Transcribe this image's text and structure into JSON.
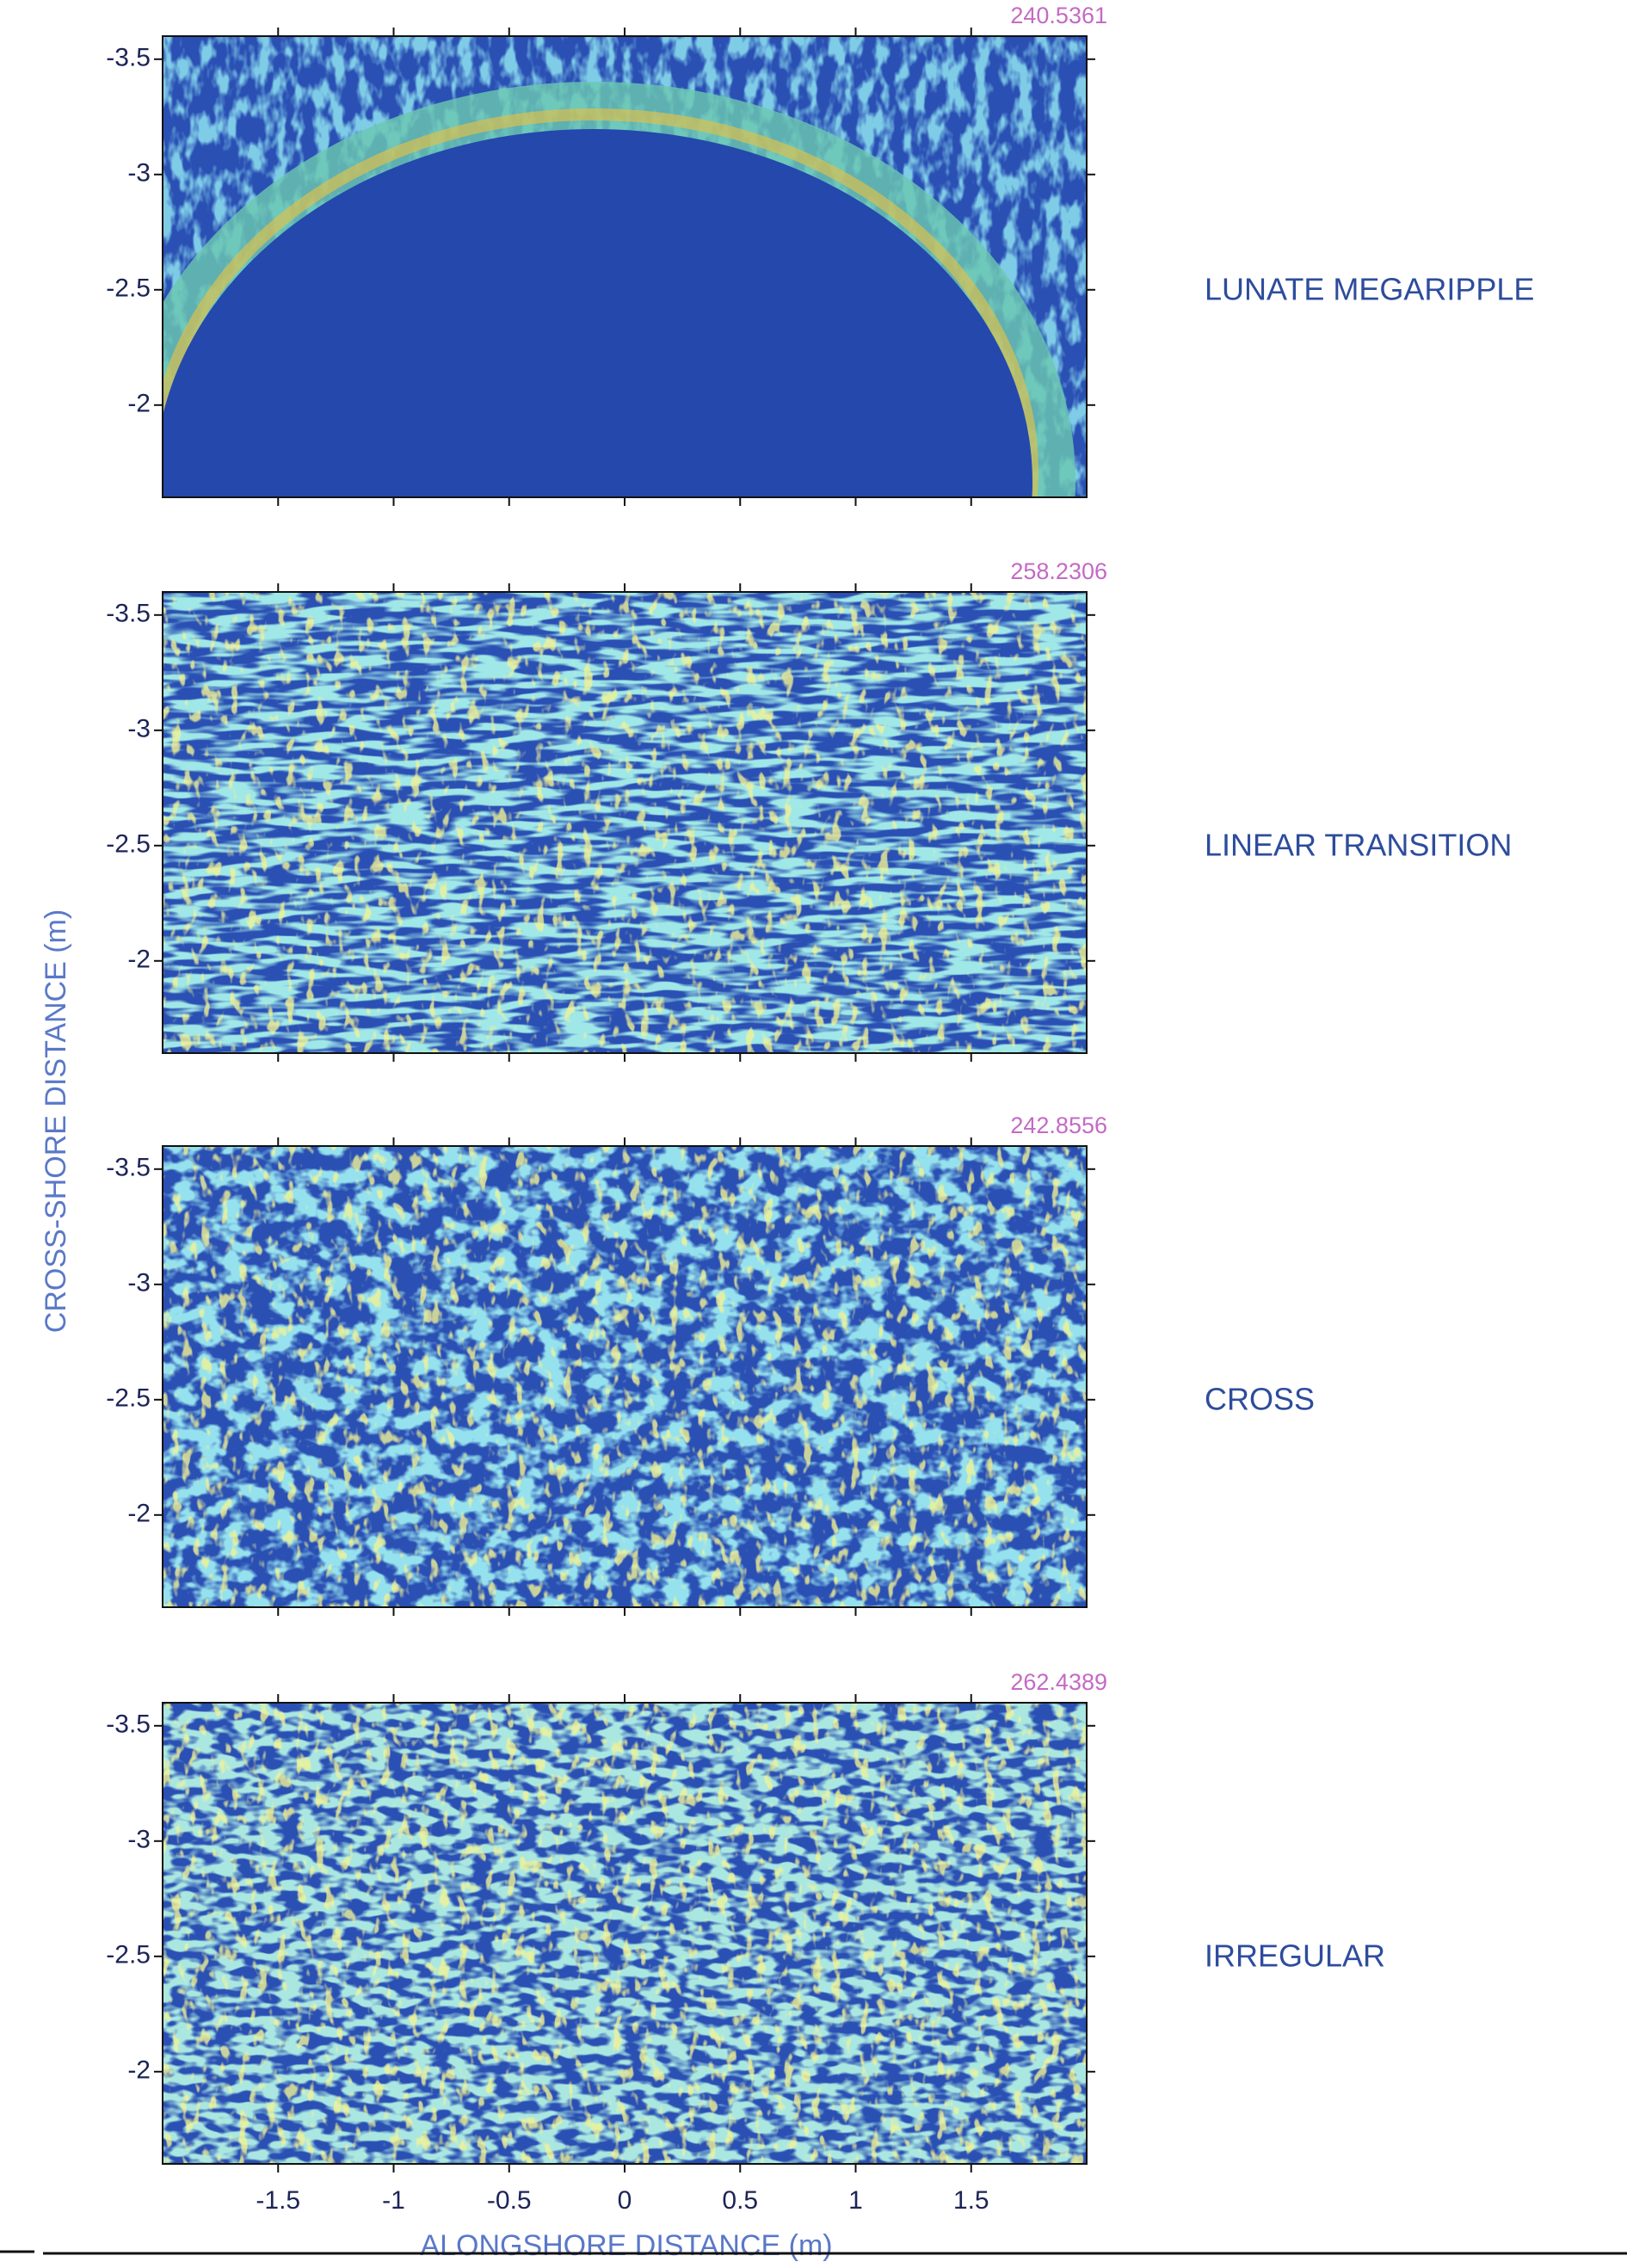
{
  "xlabel": "ALONGSHORE DISTANCE (m)",
  "ylabel": "CROSS-SHORE DISTANCE (m)",
  "chart_data": [
    {
      "type": "heatmap",
      "title": "240.5361",
      "label": "LUNATE MEGARIPPLE",
      "xlim": [
        -2,
        2
      ],
      "xticks": [
        -1.5,
        -1,
        -0.5,
        0,
        0.5,
        1,
        1.5
      ],
      "ylim": [
        -3.6,
        -1.6
      ],
      "y_reversed": true,
      "yticks": [
        -3.5,
        -3,
        -2.5,
        -2
      ]
    },
    {
      "type": "heatmap",
      "title": "258.2306",
      "label": "LINEAR TRANSITION",
      "xlim": [
        -2,
        2
      ],
      "xticks": [
        -1.5,
        -1,
        -0.5,
        0,
        0.5,
        1,
        1.5
      ],
      "ylim": [
        -3.6,
        -1.6
      ],
      "y_reversed": true,
      "yticks": [
        -3.5,
        -3,
        -2.5,
        -2
      ]
    },
    {
      "type": "heatmap",
      "title": "242.8556",
      "label": "CROSS",
      "xlim": [
        -2,
        2
      ],
      "xticks": [
        -1.5,
        -1,
        -0.5,
        0,
        0.5,
        1,
        1.5
      ],
      "ylim": [
        -3.6,
        -1.6
      ],
      "y_reversed": true,
      "yticks": [
        -3.5,
        -3,
        -2.5,
        -2
      ]
    },
    {
      "type": "heatmap",
      "title": "262.4389",
      "label": "IRREGULAR",
      "xlim": [
        -2,
        2
      ],
      "xticks": [
        -1.5,
        -1,
        -0.5,
        0,
        0.5,
        1,
        1.5
      ],
      "ylim": [
        -3.6,
        -1.6
      ],
      "y_reversed": true,
      "yticks": [
        -3.5,
        -3,
        -2.5,
        -2
      ]
    }
  ]
}
